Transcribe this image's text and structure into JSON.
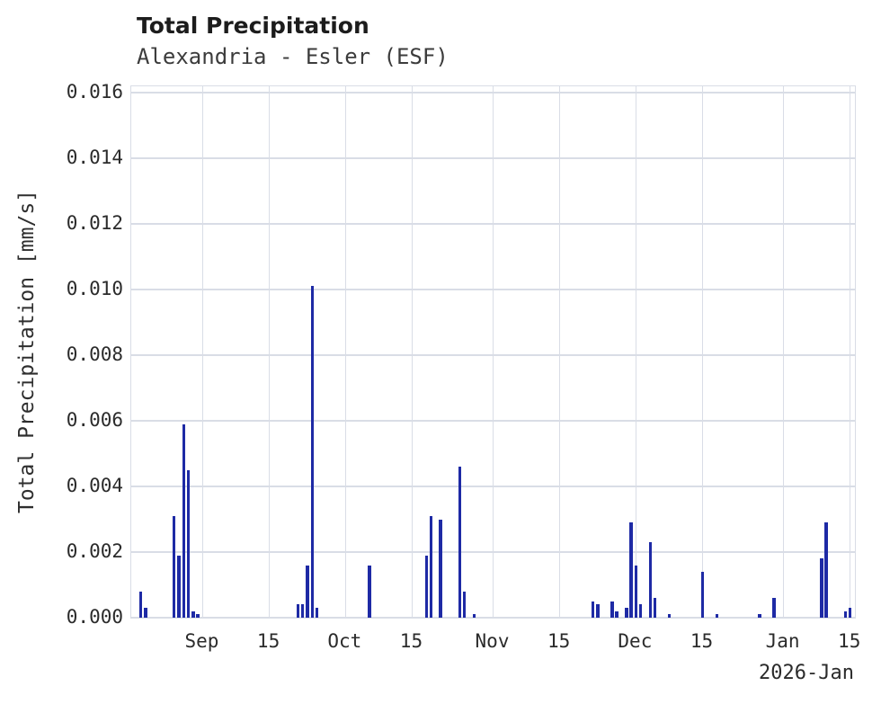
{
  "chart_data": {
    "type": "bar",
    "title": "Total Precipitation",
    "subtitle": "Alexandria - Esler (ESF)",
    "ylabel": "Total Precipitation [mm/s]",
    "xlabel": "",
    "x_corner_label": "2026-Jan",
    "bar_color": "#1e2aa5",
    "grid_color": "#d9dde6",
    "grid": true,
    "legend": "none",
    "ylim": [
      0,
      0.016192
    ],
    "yticks": [
      0,
      0.002,
      0.004,
      0.006,
      0.008,
      0.01,
      0.012,
      0.014,
      0.016
    ],
    "ytick_decimals": 3,
    "xlim": [
      "2025-08-17",
      "2026-01-16"
    ],
    "xticks": [
      {
        "date": "2025-09-01",
        "label": "Sep"
      },
      {
        "date": "2025-09-15",
        "label": "15"
      },
      {
        "date": "2025-10-01",
        "label": "Oct"
      },
      {
        "date": "2025-10-15",
        "label": "15"
      },
      {
        "date": "2025-11-01",
        "label": "Nov"
      },
      {
        "date": "2025-11-15",
        "label": "15"
      },
      {
        "date": "2025-12-01",
        "label": "Dec"
      },
      {
        "date": "2025-12-15",
        "label": "15"
      },
      {
        "date": "2026-01-01",
        "label": "Jan"
      },
      {
        "date": "2026-01-15",
        "label": "15"
      }
    ],
    "points": [
      {
        "date": "2025-08-19",
        "value": 0.0008
      },
      {
        "date": "2025-08-20",
        "value": 0.0003
      },
      {
        "date": "2025-08-26",
        "value": 0.0031
      },
      {
        "date": "2025-08-27",
        "value": 0.0019
      },
      {
        "date": "2025-08-28",
        "value": 0.0059
      },
      {
        "date": "2025-08-29",
        "value": 0.0045
      },
      {
        "date": "2025-08-30",
        "value": 0.0002
      },
      {
        "date": "2025-08-31",
        "value": 0.0001
      },
      {
        "date": "2025-09-21",
        "value": 0.0004
      },
      {
        "date": "2025-09-22",
        "value": 0.0004
      },
      {
        "date": "2025-09-23",
        "value": 0.0016
      },
      {
        "date": "2025-09-24",
        "value": 0.0101
      },
      {
        "date": "2025-09-25",
        "value": 0.0003
      },
      {
        "date": "2025-10-06",
        "value": 0.0016
      },
      {
        "date": "2025-10-18",
        "value": 0.0019
      },
      {
        "date": "2025-10-19",
        "value": 0.0031
      },
      {
        "date": "2025-10-21",
        "value": 0.003
      },
      {
        "date": "2025-10-25",
        "value": 0.0046
      },
      {
        "date": "2025-10-26",
        "value": 0.0008
      },
      {
        "date": "2025-10-28",
        "value": 0.0001
      },
      {
        "date": "2025-11-22",
        "value": 0.0005
      },
      {
        "date": "2025-11-23",
        "value": 0.0004
      },
      {
        "date": "2025-11-26",
        "value": 0.0005
      },
      {
        "date": "2025-11-27",
        "value": 0.0002
      },
      {
        "date": "2025-11-29",
        "value": 0.0003
      },
      {
        "date": "2025-11-30",
        "value": 0.0029
      },
      {
        "date": "2025-12-01",
        "value": 0.0016
      },
      {
        "date": "2025-12-02",
        "value": 0.0004
      },
      {
        "date": "2025-12-04",
        "value": 0.0023
      },
      {
        "date": "2025-12-05",
        "value": 0.0006
      },
      {
        "date": "2025-12-08",
        "value": 0.0001
      },
      {
        "date": "2025-12-15",
        "value": 0.0014
      },
      {
        "date": "2025-12-18",
        "value": 0.0001
      },
      {
        "date": "2025-12-27",
        "value": 0.0001
      },
      {
        "date": "2025-12-30",
        "value": 0.0006
      },
      {
        "date": "2026-01-09",
        "value": 0.0018
      },
      {
        "date": "2026-01-10",
        "value": 0.0029
      },
      {
        "date": "2026-01-14",
        "value": 0.0002
      },
      {
        "date": "2026-01-15",
        "value": 0.0003
      }
    ]
  }
}
